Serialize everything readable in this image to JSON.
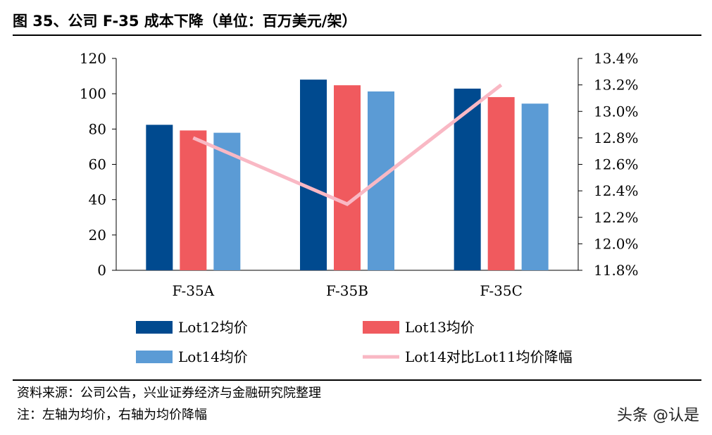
{
  "header": {
    "title": "图 35、公司 F-35 成本下降（单位：百万美元/架）"
  },
  "footer": {
    "source": "资料来源：公司公告，兴业证券经济与金融研究院整理",
    "note": "注：左轴为均价，右轴为均价降幅",
    "watermark": "头条 @认是"
  },
  "chart_data": {
    "type": "bar",
    "categories": [
      "F-35A",
      "F-35B",
      "F-35C"
    ],
    "series": [
      {
        "name": "Lot12均价",
        "kind": "bar",
        "axis": "left",
        "color": "#004a8f",
        "values": [
          82.4,
          108.0,
          102.9
        ]
      },
      {
        "name": "Lot13均价",
        "kind": "bar",
        "axis": "left",
        "color": "#f05a5e",
        "values": [
          79.2,
          104.8,
          98.1
        ]
      },
      {
        "name": "Lot14均价",
        "kind": "bar",
        "axis": "left",
        "color": "#5b9bd5",
        "values": [
          77.9,
          101.3,
          94.4
        ]
      },
      {
        "name": "Lot14对比Lot11均价降幅",
        "kind": "line",
        "axis": "right",
        "color": "#f9b8c4",
        "values": [
          12.8,
          12.3,
          13.2
        ]
      }
    ],
    "y_left": {
      "min": 0,
      "max": 120,
      "ticks": [
        "0",
        "20",
        "40",
        "60",
        "80",
        "100",
        "120"
      ]
    },
    "y_right": {
      "min": 11.8,
      "max": 13.4,
      "ticks": [
        "11.8%",
        "12.0%",
        "12.2%",
        "12.4%",
        "12.6%",
        "12.8%",
        "13.0%",
        "13.2%",
        "13.4%"
      ]
    },
    "grid": false,
    "legend_position": "bottom"
  }
}
